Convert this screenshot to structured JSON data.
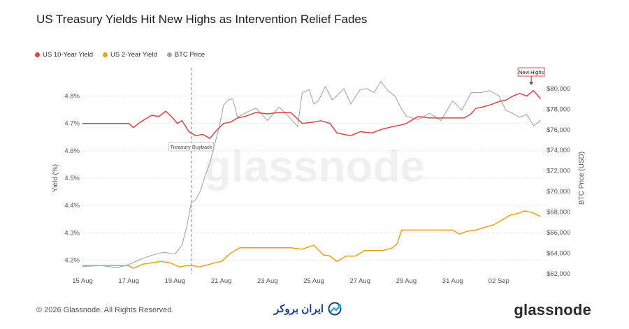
{
  "title": "US Treasury Yields Hit New Highs as Intervention Relief Fades",
  "legend": [
    {
      "label": "US 10-Year Yield",
      "color": "#d94343"
    },
    {
      "label": "US 2-Year Yield",
      "color": "#e8a21a"
    },
    {
      "label": "BTC Price",
      "color": "#a6a6a6"
    }
  ],
  "watermark": "glassnode",
  "footer": {
    "copyright": "© 2026 Glassnode. All Rights Reserved.",
    "partner_logo": "ایران بروکر",
    "brand_logo": "glassnode"
  },
  "chart_data": {
    "type": "line",
    "x_ticks": [
      "15 Aug",
      "17 Aug",
      "19 Aug",
      "21 Aug",
      "23 Aug",
      "25 Aug",
      "27 Aug",
      "29 Aug",
      "31 Aug",
      "02 Sep"
    ],
    "left_axis": {
      "label": "Yield (%)",
      "ticks": [
        "4.2%",
        "4.3%",
        "4.4%",
        "4.5%",
        "4.6%",
        "4.7%",
        "4.8%"
      ],
      "range": [
        4.15,
        4.85
      ]
    },
    "right_axis": {
      "label": "BTC Price (USD)",
      "ticks": [
        "$62,000",
        "$64,000",
        "$66,000",
        "$68,000",
        "$70,000",
        "$72,000",
        "$74,000",
        "$76,000",
        "$78,000",
        "$80,000"
      ],
      "range": [
        62000,
        80600
      ]
    },
    "annotations": [
      {
        "label": "Treasury Buyback",
        "x": 19.7
      },
      {
        "label": "New Highs",
        "x": 34.4
      }
    ],
    "series": [
      {
        "name": "US 10-Year Yield",
        "axis": "left",
        "color": "#d94343",
        "x": [
          15,
          17,
          17.2,
          17.5,
          17.8,
          18.0,
          18.3,
          18.6,
          18.9,
          19.1,
          19.3,
          19.6,
          19.9,
          20.2,
          20.5,
          20.8,
          21.1,
          21.4,
          21.7,
          22.0,
          22.5,
          23.0,
          23.5,
          24.0,
          24.5,
          25.0,
          25.3,
          25.7,
          26.0,
          26.3,
          26.6,
          27.0,
          27.5,
          28.0,
          28.5,
          28.8,
          29.0,
          29.5,
          30.0,
          31.0,
          31.5,
          31.8,
          32.0,
          32.3,
          32.7,
          33.0,
          33.3,
          33.6,
          33.9,
          34.2,
          34.5,
          34.8
        ],
        "y": [
          4.7,
          4.7,
          4.685,
          4.705,
          4.72,
          4.73,
          4.725,
          4.745,
          4.72,
          4.7,
          4.71,
          4.67,
          4.655,
          4.66,
          4.645,
          4.675,
          4.7,
          4.705,
          4.72,
          4.725,
          4.74,
          4.735,
          4.74,
          4.74,
          4.7,
          4.705,
          4.71,
          4.7,
          4.665,
          4.66,
          4.655,
          4.67,
          4.665,
          4.68,
          4.69,
          4.695,
          4.7,
          4.725,
          4.72,
          4.72,
          4.72,
          4.735,
          4.755,
          4.76,
          4.77,
          4.78,
          4.785,
          4.8,
          4.81,
          4.8,
          4.82,
          4.79
        ]
      },
      {
        "name": "US 2-Year Yield",
        "axis": "left",
        "color": "#e8a21a",
        "x": [
          15,
          17,
          17.2,
          17.6,
          18.0,
          18.4,
          18.8,
          19.2,
          19.5,
          19.8,
          20.0,
          20.3,
          20.7,
          21.0,
          21.4,
          21.8,
          22.2,
          23.0,
          24.0,
          24.5,
          25.0,
          25.4,
          25.7,
          26.0,
          26.4,
          26.8,
          27.2,
          27.6,
          28.0,
          28.4,
          28.6,
          28.8,
          29.0,
          30.0,
          31.0,
          31.3,
          31.6,
          32.0,
          32.4,
          32.8,
          33.2,
          33.5,
          33.8,
          34.1,
          34.4,
          34.8
        ],
        "y": [
          4.18,
          4.18,
          4.17,
          4.185,
          4.19,
          4.195,
          4.19,
          4.175,
          4.18,
          4.18,
          4.175,
          4.18,
          4.19,
          4.195,
          4.225,
          4.245,
          4.245,
          4.245,
          4.245,
          4.24,
          4.255,
          4.22,
          4.215,
          4.195,
          4.215,
          4.215,
          4.235,
          4.235,
          4.235,
          4.245,
          4.26,
          4.31,
          4.31,
          4.31,
          4.31,
          4.295,
          4.305,
          4.31,
          4.32,
          4.33,
          4.35,
          4.365,
          4.37,
          4.38,
          4.375,
          4.36
        ]
      },
      {
        "name": "BTC Price",
        "axis": "right",
        "color": "#a6a6a6",
        "x": [
          15,
          15.8,
          16.5,
          17.0,
          17.5,
          18.0,
          18.5,
          19.0,
          19.3,
          19.5,
          19.7,
          19.9,
          20.1,
          20.3,
          20.5,
          20.7,
          20.9,
          21.1,
          21.3,
          21.5,
          21.7,
          22.0,
          22.5,
          23.0,
          23.5,
          24.0,
          24.3,
          24.5,
          24.8,
          25.0,
          25.2,
          25.5,
          25.8,
          26.0,
          26.3,
          26.6,
          27.0,
          27.3,
          27.6,
          27.9,
          28.2,
          28.5,
          28.7,
          29.0,
          29.5,
          30.0,
          30.5,
          31.0,
          31.4,
          31.8,
          32.2,
          32.6,
          33.0,
          33.3,
          33.6,
          33.9,
          34.2,
          34.5,
          34.8
        ],
        "y": [
          62700,
          62800,
          62600,
          62900,
          63400,
          63800,
          64100,
          63900,
          64800,
          66500,
          68900,
          69200,
          70100,
          71500,
          72700,
          74500,
          76100,
          78400,
          78900,
          79000,
          77200,
          77600,
          78100,
          76900,
          78200,
          77100,
          76300,
          79600,
          79900,
          78500,
          78800,
          80200,
          78900,
          79300,
          80000,
          78500,
          79900,
          80000,
          79600,
          80700,
          79800,
          79300,
          78400,
          77300,
          77000,
          77600,
          76900,
          78800,
          77900,
          79600,
          79600,
          79800,
          79300,
          77900,
          77600,
          77200,
          77500,
          76400,
          76900
        ]
      }
    ]
  }
}
